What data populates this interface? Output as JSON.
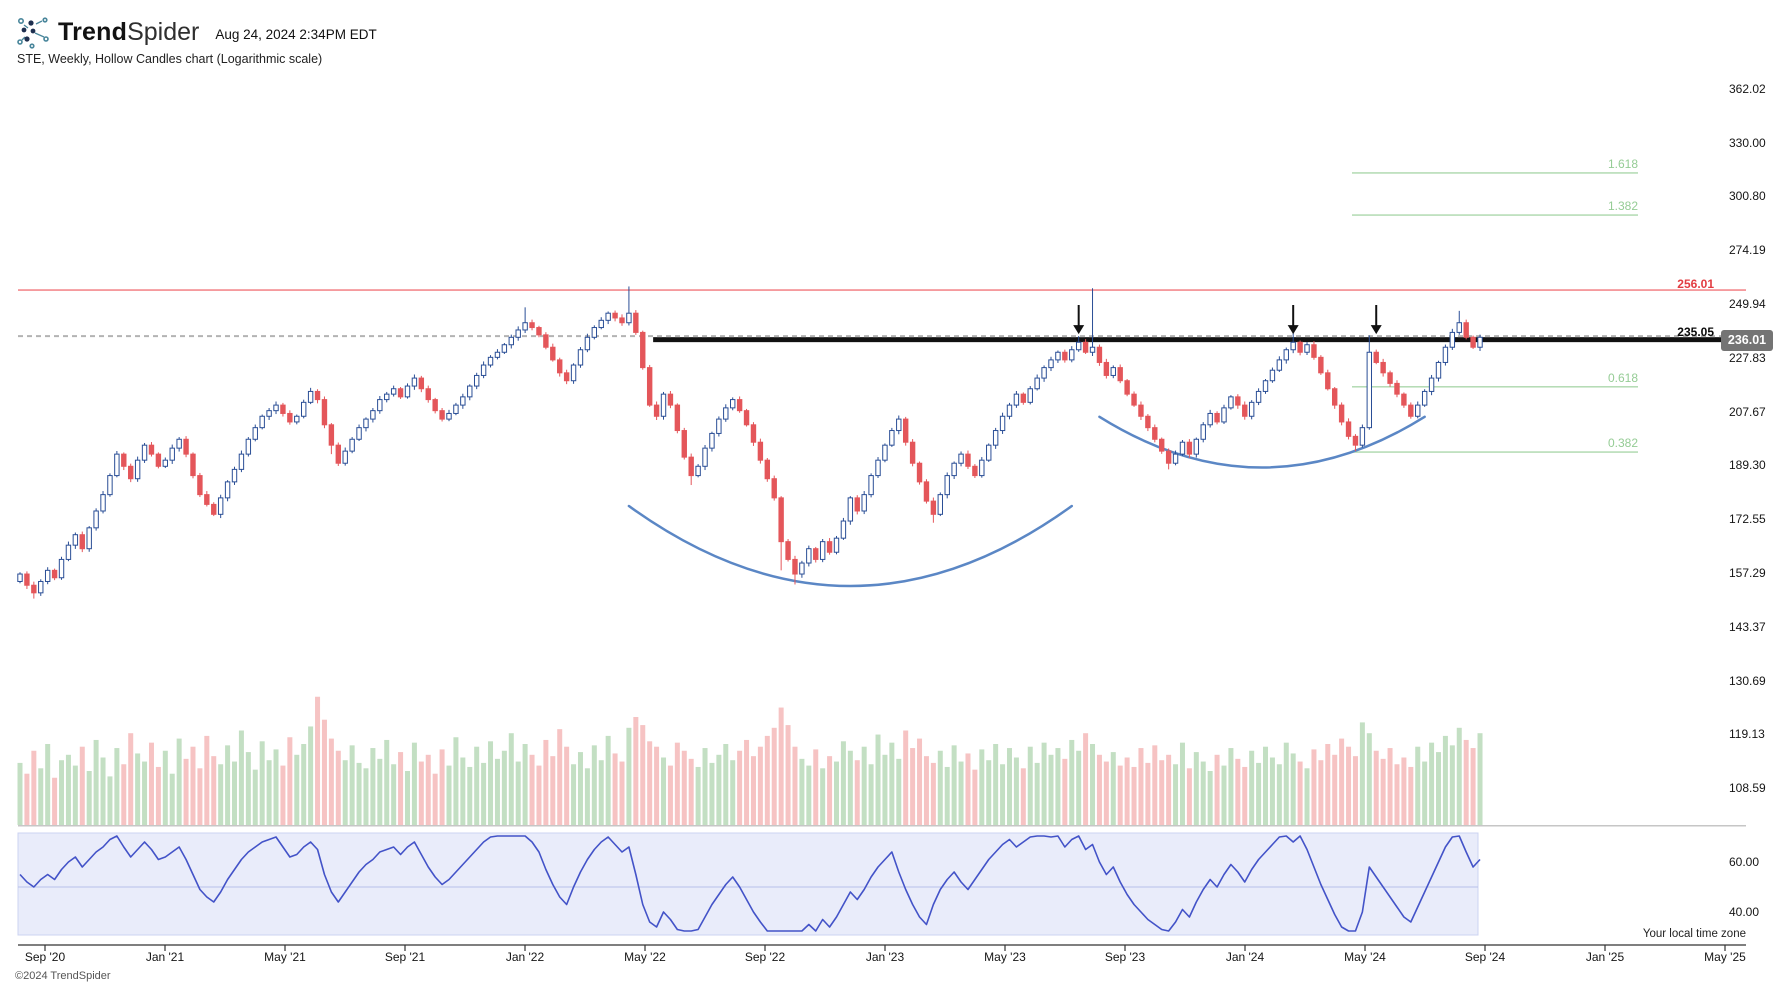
{
  "header": {
    "logo_bold": "Trend",
    "logo_light": "Spider",
    "datetime": "Aug 24, 2024 2:34PM EDT",
    "subtitle": "STE, Weekly, Hollow Candles chart (Logarithmic scale)"
  },
  "footer": {
    "timezone_note": "Your local time zone",
    "copyright": "©2024 TrendSpider"
  },
  "levels": {
    "resistance": {
      "label": "256.01",
      "price": 256.01
    },
    "breakout": {
      "label": "235.05",
      "price": 235.05
    },
    "last": {
      "label": "236.01",
      "price": 236.01
    }
  },
  "colors": {
    "up": "#2a4e96",
    "down": "#e4565a",
    "vol_up": "#c3dfc3",
    "vol_down": "#f6c3c3",
    "red_line": "#f59a9d",
    "red_label": "#e23c41",
    "black_line": "#111111",
    "dashed": "#b3b3b3",
    "fib_line": "#abd7ab",
    "fib_label": "#95cc95",
    "rsi_line": "#4353c8",
    "rsi_bg": "#e9ecfa",
    "rsi_mid": "#b7c0ea",
    "rsi_border": "#ccd3f2",
    "axis": "#333333",
    "badge_bg": "#747474",
    "separator": "#c6c6c6",
    "arc": "#5b87c5",
    "arrow": "#111111"
  },
  "chart_data": {
    "type": "candlestick",
    "symbol": "STE",
    "timeframe": "Weekly",
    "style": "Hollow Candles",
    "scale": "Logarithmic",
    "title": "STE, Weekly, Hollow Candles chart (Logarithmic scale)",
    "y_axis_ticks": [
      "362.02",
      "330.00",
      "300.80",
      "274.19",
      "249.94",
      "227.83",
      "207.67",
      "189.30",
      "172.55",
      "157.29",
      "143.37",
      "130.69",
      "119.13",
      "108.59"
    ],
    "rsi_axis_ticks": [
      "60.00",
      "40.00"
    ],
    "x_axis_labels": [
      "Sep '20",
      "Jan '21",
      "May '21",
      "Sep '21",
      "Jan '22",
      "May '22",
      "Sep '22",
      "Jan '23",
      "May '23",
      "Sep '23",
      "Jan '24",
      "May '24",
      "Sep '24",
      "Jan '25",
      "May '25"
    ],
    "fib_extensions": [
      {
        "label": "1.618",
        "price": 313.2
      },
      {
        "label": "1.382",
        "price": 291.3
      },
      {
        "label": "0.618",
        "price": 216.7
      },
      {
        "label": "0.382",
        "price": 193.7
      }
    ],
    "first_open": 155,
    "weekly_closes": [
      157,
      154,
      152,
      155,
      158,
      156,
      161,
      165,
      168,
      164,
      170,
      175,
      180,
      186,
      193,
      189,
      185,
      191,
      196,
      193,
      189,
      191,
      195,
      198,
      193,
      186,
      180,
      177,
      174,
      179,
      184,
      188,
      193,
      198,
      202,
      206,
      208,
      210,
      207,
      204,
      206,
      211,
      215,
      212,
      203,
      196,
      190,
      194,
      198,
      202,
      205,
      208,
      212,
      214,
      216,
      213,
      217,
      220,
      216,
      212,
      208,
      205,
      207,
      210,
      213,
      217,
      221,
      225,
      228,
      230,
      233,
      236,
      239,
      242,
      240,
      237,
      232,
      227,
      222,
      219,
      225,
      231,
      236,
      240,
      243,
      246,
      244,
      242,
      246,
      238,
      224,
      210,
      206,
      214,
      210,
      201,
      192,
      186,
      189,
      195,
      200,
      205,
      209,
      212,
      208,
      203,
      197,
      191,
      185,
      179,
      166,
      161,
      157,
      160,
      164,
      161,
      166,
      163,
      167,
      172,
      179,
      175,
      180,
      186,
      191,
      196,
      201,
      205,
      197,
      190,
      184,
      178,
      174,
      180,
      186,
      190,
      193,
      189,
      186,
      191,
      196,
      201,
      206,
      210,
      214,
      211,
      216,
      220,
      224,
      227,
      230,
      227,
      231,
      234,
      230,
      232,
      226,
      221,
      224,
      219,
      214,
      210,
      206,
      202,
      198,
      194,
      190,
      193,
      197,
      193,
      198,
      203,
      207,
      204,
      209,
      213,
      210,
      206,
      211,
      215,
      219,
      223,
      227,
      231,
      234,
      230,
      233,
      228,
      222,
      216,
      210,
      204,
      199,
      196,
      202,
      230,
      226,
      222,
      218,
      214,
      210,
      206,
      210,
      215,
      220,
      226,
      232,
      238,
      242,
      236,
      232,
      236.01
    ],
    "spike_highs": {
      "73": 248.5,
      "88": 257.6,
      "153": 236.5,
      "155": 256.8,
      "184": 238.2,
      "195": 236.8,
      "208": 247
    },
    "spike_lows": {
      "2": 150.5,
      "45": 193,
      "97": 183,
      "110": 158,
      "112": 154.2,
      "132": 171.5,
      "166": 188,
      "193": 194
    },
    "volumes": [
      46,
      38,
      55,
      42,
      60,
      35,
      48,
      52,
      44,
      58,
      40,
      63,
      50,
      36,
      57,
      45,
      68,
      53,
      47,
      61,
      43,
      55,
      38,
      64,
      49,
      58,
      42,
      66,
      51,
      45,
      59,
      47,
      70,
      54,
      41,
      62,
      48,
      56,
      44,
      65,
      52,
      60,
      73,
      95,
      78,
      64,
      55,
      48,
      59,
      46,
      42,
      57,
      49,
      63,
      45,
      54,
      40,
      61,
      47,
      52,
      38,
      56,
      44,
      65,
      50,
      43,
      58,
      46,
      62,
      49,
      55,
      68,
      47,
      60,
      52,
      44,
      63,
      51,
      71,
      58,
      45,
      54,
      42,
      59,
      48,
      66,
      53,
      47,
      72,
      80,
      74,
      62,
      58,
      50,
      44,
      61,
      55,
      49,
      43,
      57,
      46,
      52,
      60,
      48,
      55,
      63,
      51,
      58,
      66,
      72,
      87,
      74,
      58,
      49,
      44,
      56,
      42,
      51,
      47,
      62,
      55,
      48,
      58,
      45,
      67,
      52,
      61,
      49,
      70,
      57,
      64,
      51,
      46,
      55,
      43,
      59,
      47,
      53,
      41,
      56,
      48,
      60,
      45,
      57,
      50,
      42,
      58,
      46,
      61,
      52,
      57,
      49,
      63,
      55,
      68,
      60,
      52,
      47,
      54,
      44,
      50,
      43,
      57,
      46,
      59,
      48,
      52,
      45,
      61,
      42,
      54,
      47,
      40,
      52,
      44,
      57,
      49,
      43,
      55,
      46,
      58,
      50,
      45,
      61,
      53,
      47,
      42,
      56,
      48,
      60,
      52,
      64,
      58,
      51,
      76,
      68,
      55,
      49,
      57,
      45,
      50,
      43,
      58,
      47,
      61,
      54,
      66,
      59,
      72,
      63,
      57,
      68
    ],
    "rsi": [
      55,
      52,
      50,
      53,
      55,
      53,
      57,
      60,
      62,
      58,
      61,
      64,
      66,
      69,
      71,
      66,
      62,
      65,
      68,
      65,
      61,
      62,
      64,
      66,
      61,
      55,
      49,
      46,
      44,
      48,
      53,
      57,
      61,
      64,
      66,
      68,
      69,
      70,
      66,
      62,
      63,
      66,
      68,
      65,
      55,
      48,
      44,
      48,
      52,
      56,
      59,
      61,
      64,
      65,
      66,
      63,
      66,
      68,
      63,
      58,
      54,
      51,
      53,
      56,
      59,
      62,
      65,
      68,
      70,
      71,
      72,
      73,
      74,
      71,
      68,
      64,
      57,
      51,
      46,
      43,
      50,
      56,
      61,
      65,
      68,
      70,
      67,
      64,
      66,
      55,
      43,
      36,
      34,
      40,
      37,
      33,
      30,
      28,
      33,
      38,
      43,
      47,
      51,
      54,
      50,
      45,
      40,
      36,
      32,
      29,
      26,
      24,
      27,
      31,
      35,
      32,
      37,
      34,
      38,
      43,
      48,
      45,
      49,
      54,
      58,
      61,
      64,
      56,
      49,
      43,
      38,
      35,
      43,
      49,
      53,
      56,
      52,
      49,
      53,
      57,
      61,
      64,
      67,
      69,
      66,
      68,
      70,
      72,
      71,
      70,
      72,
      66,
      69,
      71,
      65,
      67,
      60,
      55,
      58,
      52,
      47,
      43,
      40,
      37,
      35,
      33,
      31,
      36,
      41,
      38,
      44,
      49,
      53,
      50,
      55,
      59,
      56,
      52,
      57,
      61,
      64,
      67,
      70,
      72,
      68,
      71,
      65,
      58,
      51,
      45,
      39,
      34,
      31,
      29,
      40,
      58,
      54,
      50,
      46,
      42,
      38,
      36,
      42,
      48,
      54,
      60,
      66,
      70,
      73,
      64,
      58,
      61
    ],
    "annotations": {
      "arrows": {
        "weeks": [
          153,
          184,
          196
        ],
        "tail_price": 249.5,
        "tip_price": 237.3
      },
      "arcs": [
        {
          "from_week": 88,
          "to_week": 152,
          "rim_price": 176.5,
          "bottom_price": 153.8
        },
        {
          "from_week": 156,
          "to_week": 203,
          "rim_price": 205.8,
          "bottom_price": 188.6
        }
      ],
      "breakout_line_from_week": 91.5
    }
  }
}
